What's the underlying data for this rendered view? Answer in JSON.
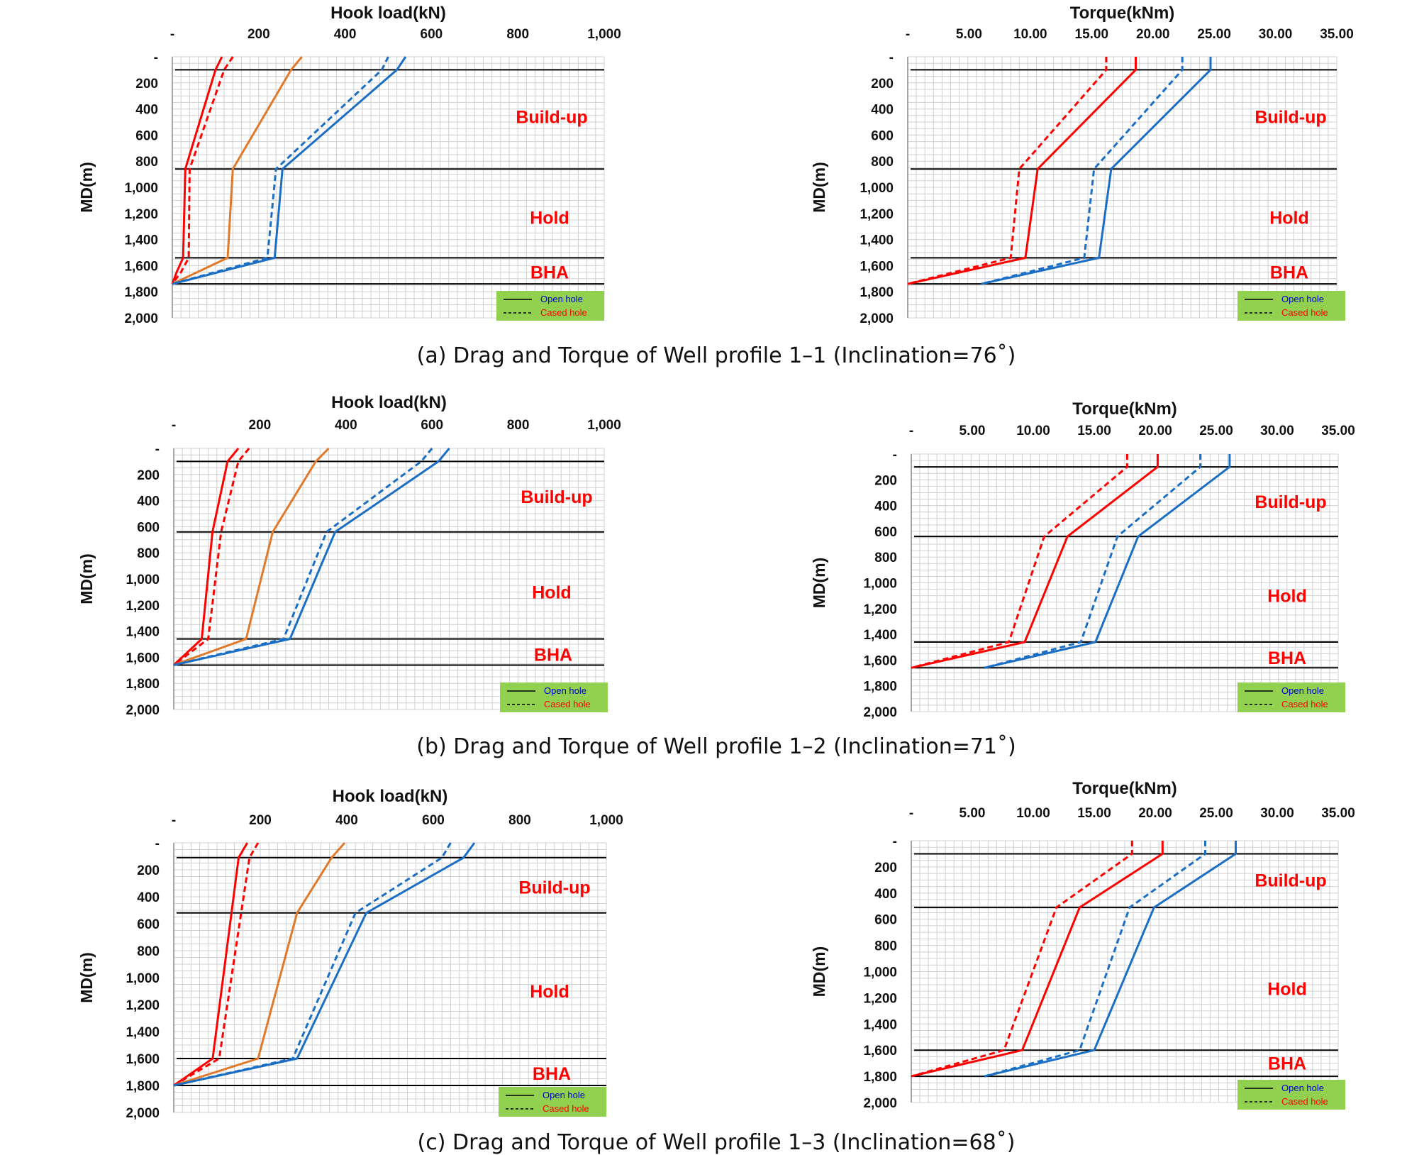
{
  "colors": {
    "upper_bound": "#ff0000",
    "middle": "#e07a2a",
    "lower_bound": "#1a6fc4",
    "open_series_torque_low": "#1a6fc4",
    "zone_text": "#ff0000",
    "legend_bg": "#92d050",
    "legend_open_text": "#0000cc",
    "legend_cased_text": "#ff0000",
    "boundary_line": "#000000",
    "grid": "#d0d0d0"
  },
  "captions": [
    "(a) Drag and Torque of Well profile 1–1 (Inclination=76˚)",
    "(b) Drag and Torque of Well profile 1–2 (Inclination=71˚)",
    "(c) Drag and Torque of Well profile 1–3 (Inclination=68˚)"
  ],
  "legend": {
    "open": "Open hole",
    "cased": "Cased hole"
  },
  "chart_data": [
    {
      "id": "a-hookload",
      "type": "line",
      "title": "Hook load(kN)",
      "ylabel": "MD(m)",
      "xlabel": "",
      "xlim": [
        0,
        1000
      ],
      "ylim": [
        0,
        2000
      ],
      "xticks": [
        "-",
        "200",
        "400",
        "600",
        "800",
        "1,000"
      ],
      "yticks": [
        "-",
        "200",
        "400",
        "600",
        "800",
        "1,000",
        "1,200",
        "1,400",
        "1,600",
        "1,800",
        "2,000"
      ],
      "boundaries": [
        100,
        860,
        1540,
        1740
      ],
      "zones": [
        {
          "label": "Build-up",
          "md": 460
        },
        {
          "label": "Hold",
          "md": 1230
        },
        {
          "label": "BHA",
          "md": 1650
        }
      ],
      "series": [
        {
          "style": "solid",
          "color": "upper_bound",
          "points": [
            [
              115,
              0
            ],
            [
              100,
              100
            ],
            [
              30,
              860
            ],
            [
              25,
              1540
            ],
            [
              10,
              1650
            ],
            [
              0,
              1740
            ]
          ]
        },
        {
          "style": "dashed",
          "color": "upper_bound",
          "points": [
            [
              140,
              0
            ],
            [
              120,
              100
            ],
            [
              40,
              860
            ],
            [
              38,
              1540
            ],
            [
              20,
              1650
            ],
            [
              0,
              1740
            ]
          ]
        },
        {
          "style": "solid",
          "color": "middle",
          "points": [
            [
              300,
              0
            ],
            [
              275,
              100
            ],
            [
              140,
              860
            ],
            [
              128,
              1540
            ],
            [
              0,
              1740
            ]
          ]
        },
        {
          "style": "dashed",
          "color": "lower_bound",
          "points": [
            [
              500,
              0
            ],
            [
              485,
              100
            ],
            [
              240,
              860
            ],
            [
              220,
              1540
            ],
            [
              0,
              1740
            ]
          ]
        },
        {
          "style": "solid",
          "color": "lower_bound",
          "points": [
            [
              540,
              0
            ],
            [
              520,
              100
            ],
            [
              255,
              860
            ],
            [
              237,
              1540
            ],
            [
              0,
              1740
            ]
          ]
        }
      ]
    },
    {
      "id": "a-torque",
      "type": "line",
      "title": "Torque(kNm)",
      "ylabel": "MD(m)",
      "xlabel": "",
      "xlim": [
        0,
        35
      ],
      "ylim": [
        0,
        2000
      ],
      "xticks": [
        "-",
        "5.00",
        "10.00",
        "15.00",
        "20.00",
        "25.00",
        "30.00",
        "35.00"
      ],
      "yticks": [
        "-",
        "200",
        "400",
        "600",
        "800",
        "1,000",
        "1,200",
        "1,400",
        "1,600",
        "1,800",
        "2,000"
      ],
      "boundaries": [
        100,
        860,
        1540,
        1740
      ],
      "zones": [
        {
          "label": "Build-up",
          "md": 460
        },
        {
          "label": "Hold",
          "md": 1230
        },
        {
          "label": "BHA",
          "md": 1650
        }
      ],
      "series": [
        {
          "style": "dashed",
          "color": "upper_bound",
          "points": [
            [
              16.2,
              0
            ],
            [
              16.2,
              100
            ],
            [
              9.1,
              860
            ],
            [
              8.4,
              1540
            ],
            [
              0,
              1740
            ]
          ]
        },
        {
          "style": "solid",
          "color": "upper_bound",
          "points": [
            [
              18.6,
              0
            ],
            [
              18.6,
              100
            ],
            [
              10.6,
              860
            ],
            [
              9.6,
              1540
            ],
            [
              0,
              1740
            ]
          ]
        },
        {
          "style": "dashed",
          "color": "lower_bound",
          "points": [
            [
              22.4,
              0
            ],
            [
              22.4,
              100
            ],
            [
              15.2,
              860
            ],
            [
              14.4,
              1540
            ],
            [
              6.0,
              1740
            ]
          ]
        },
        {
          "style": "solid",
          "color": "lower_bound",
          "points": [
            [
              24.7,
              0
            ],
            [
              24.7,
              100
            ],
            [
              16.6,
              860
            ],
            [
              15.6,
              1540
            ],
            [
              6.0,
              1740
            ]
          ]
        }
      ]
    },
    {
      "id": "b-hookload",
      "type": "line",
      "title": "Hook load(kN)",
      "ylabel": "MD(m)",
      "xlabel": "",
      "xlim": [
        0,
        1000
      ],
      "ylim": [
        0,
        2000
      ],
      "xticks": [
        "-",
        "200",
        "400",
        "600",
        "800",
        "1,000"
      ],
      "yticks": [
        "-",
        "200",
        "400",
        "600",
        "800",
        "1,000",
        "1,200",
        "1,400",
        "1,600",
        "1,800",
        "2,000"
      ],
      "boundaries": [
        100,
        640,
        1460,
        1660
      ],
      "zones": [
        {
          "label": "Build-up",
          "md": 370
        },
        {
          "label": "Hold",
          "md": 1100
        },
        {
          "label": "BHA",
          "md": 1580
        }
      ],
      "series": [
        {
          "style": "solid",
          "color": "upper_bound",
          "points": [
            [
              150,
              0
            ],
            [
              125,
              100
            ],
            [
              90,
              640
            ],
            [
              65,
              1460
            ],
            [
              0,
              1660
            ]
          ]
        },
        {
          "style": "dashed",
          "color": "upper_bound",
          "points": [
            [
              175,
              0
            ],
            [
              150,
              100
            ],
            [
              110,
              640
            ],
            [
              80,
              1460
            ],
            [
              0,
              1660
            ]
          ]
        },
        {
          "style": "solid",
          "color": "middle",
          "points": [
            [
              360,
              0
            ],
            [
              330,
              100
            ],
            [
              230,
              640
            ],
            [
              168,
              1460
            ],
            [
              0,
              1660
            ]
          ]
        },
        {
          "style": "dashed",
          "color": "lower_bound",
          "points": [
            [
              600,
              0
            ],
            [
              575,
              100
            ],
            [
              355,
              640
            ],
            [
              255,
              1460
            ],
            [
              0,
              1660
            ]
          ]
        },
        {
          "style": "solid",
          "color": "lower_bound",
          "points": [
            [
              640,
              0
            ],
            [
              615,
              100
            ],
            [
              375,
              640
            ],
            [
              270,
              1460
            ],
            [
              0,
              1660
            ]
          ]
        }
      ]
    },
    {
      "id": "b-torque",
      "type": "line",
      "title": "Torque(kNm)",
      "ylabel": "MD(m)",
      "xlabel": "",
      "xlim": [
        0,
        35
      ],
      "ylim": [
        0,
        2000
      ],
      "xticks": [
        "-",
        "5.00",
        "10.00",
        "15.00",
        "20.00",
        "25.00",
        "30.00",
        "35.00"
      ],
      "yticks": [
        "-",
        "200",
        "400",
        "600",
        "800",
        "1,000",
        "1,200",
        "1,400",
        "1,600",
        "1,800",
        "2,000"
      ],
      "boundaries": [
        100,
        640,
        1460,
        1660
      ],
      "zones": [
        {
          "label": "Build-up",
          "md": 370
        },
        {
          "label": "Hold",
          "md": 1100
        },
        {
          "label": "BHA",
          "md": 1580
        }
      ],
      "series": [
        {
          "style": "dashed",
          "color": "upper_bound",
          "points": [
            [
              17.7,
              0
            ],
            [
              17.7,
              100
            ],
            [
              10.9,
              640
            ],
            [
              8.0,
              1460
            ],
            [
              0,
              1660
            ]
          ]
        },
        {
          "style": "solid",
          "color": "upper_bound",
          "points": [
            [
              20.2,
              0
            ],
            [
              20.2,
              100
            ],
            [
              12.8,
              640
            ],
            [
              9.3,
              1460
            ],
            [
              0,
              1660
            ]
          ]
        },
        {
          "style": "dashed",
          "color": "lower_bound",
          "points": [
            [
              23.7,
              0
            ],
            [
              23.7,
              100
            ],
            [
              16.9,
              640
            ],
            [
              13.9,
              1460
            ],
            [
              6.0,
              1660
            ]
          ]
        },
        {
          "style": "solid",
          "color": "lower_bound",
          "points": [
            [
              26.1,
              0
            ],
            [
              26.1,
              100
            ],
            [
              18.6,
              640
            ],
            [
              15.1,
              1460
            ],
            [
              6.0,
              1660
            ]
          ]
        }
      ]
    },
    {
      "id": "c-hookload",
      "type": "line",
      "title": "Hook load(kN)",
      "ylabel": "MD(m)",
      "xlabel": "",
      "xlim": [
        0,
        1000
      ],
      "ylim": [
        0,
        2000
      ],
      "xticks": [
        "-",
        "200",
        "400",
        "600",
        "800",
        "1,000"
      ],
      "yticks": [
        "-",
        "200",
        "400",
        "600",
        "800",
        "1,000",
        "1,200",
        "1,400",
        "1,600",
        "1,800",
        "2,000"
      ],
      "boundaries": [
        110,
        520,
        1600,
        1800
      ],
      "zones": [
        {
          "label": "Build-up",
          "md": 330
        },
        {
          "label": "Hold",
          "md": 1100
        },
        {
          "label": "BHA",
          "md": 1710
        }
      ],
      "series": [
        {
          "style": "solid",
          "color": "upper_bound",
          "points": [
            [
              170,
              0
            ],
            [
              150,
              110
            ],
            [
              90,
              1600
            ],
            [
              0,
              1800
            ]
          ]
        },
        {
          "style": "dashed",
          "color": "upper_bound",
          "points": [
            [
              195,
              0
            ],
            [
              175,
              110
            ],
            [
              105,
              1600
            ],
            [
              0,
              1800
            ]
          ]
        },
        {
          "style": "solid",
          "color": "middle",
          "points": [
            [
              395,
              0
            ],
            [
              365,
              110
            ],
            [
              285,
              520
            ],
            [
              195,
              1600
            ],
            [
              0,
              1800
            ]
          ]
        },
        {
          "style": "dashed",
          "color": "lower_bound",
          "points": [
            [
              640,
              0
            ],
            [
              620,
              110
            ],
            [
              420,
              520
            ],
            [
              275,
              1600
            ],
            [
              0,
              1800
            ]
          ]
        },
        {
          "style": "solid",
          "color": "lower_bound",
          "points": [
            [
              695,
              0
            ],
            [
              670,
              110
            ],
            [
              445,
              520
            ],
            [
              285,
              1600
            ],
            [
              0,
              1800
            ]
          ]
        }
      ]
    },
    {
      "id": "c-torque",
      "type": "line",
      "title": "Torque(kNm)",
      "ylabel": "MD(m)",
      "xlabel": "",
      "xlim": [
        0,
        35
      ],
      "ylim": [
        0,
        2000
      ],
      "xticks": [
        "-",
        "5.00",
        "10.00",
        "15.00",
        "20.00",
        "25.00",
        "30.00",
        "35.00"
      ],
      "yticks": [
        "-",
        "200",
        "400",
        "600",
        "800",
        "1,000",
        "1,200",
        "1,400",
        "1,600",
        "1,800",
        "2,000"
      ],
      "boundaries": [
        100,
        510,
        1600,
        1800
      ],
      "zones": [
        {
          "label": "Build-up",
          "md": 300
        },
        {
          "label": "Hold",
          "md": 1130
        },
        {
          "label": "BHA",
          "md": 1700
        }
      ],
      "series": [
        {
          "style": "dashed",
          "color": "upper_bound",
          "points": [
            [
              18.1,
              0
            ],
            [
              18.1,
              100
            ],
            [
              11.9,
              510
            ],
            [
              7.6,
              1600
            ],
            [
              0,
              1800
            ]
          ]
        },
        {
          "style": "solid",
          "color": "upper_bound",
          "points": [
            [
              20.6,
              0
            ],
            [
              20.6,
              100
            ],
            [
              13.8,
              510
            ],
            [
              9.1,
              1600
            ],
            [
              0,
              1800
            ]
          ]
        },
        {
          "style": "dashed",
          "color": "lower_bound",
          "points": [
            [
              24.1,
              0
            ],
            [
              24.1,
              100
            ],
            [
              17.9,
              510
            ],
            [
              13.8,
              1600
            ],
            [
              6.0,
              1800
            ]
          ]
        },
        {
          "style": "solid",
          "color": "lower_bound",
          "points": [
            [
              26.6,
              0
            ],
            [
              26.6,
              100
            ],
            [
              19.9,
              510
            ],
            [
              15.0,
              1600
            ],
            [
              6.0,
              1800
            ]
          ]
        }
      ]
    }
  ]
}
